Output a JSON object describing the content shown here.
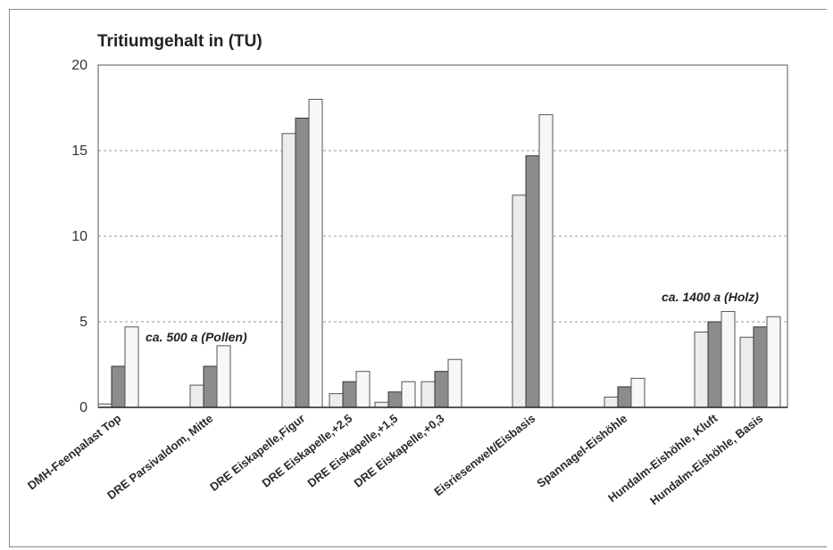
{
  "chart_data": {
    "type": "bar",
    "title": "Tritiumgehalt in (TU)",
    "ylim": [
      0,
      20
    ],
    "yticks": [
      0,
      5,
      10,
      15,
      20
    ],
    "grid": "horizontal dashed",
    "colors": [
      "#ececec",
      "#8c8c8c",
      "#f7f7f7"
    ],
    "categories": [
      "DMH-Feenpalast Top",
      "DRE Parsivaldom, Mitte",
      "DRE Eiskapelle,Figur",
      "DRE Eiskapelle,+2,5",
      "DRE Eiskapelle,+1,5",
      "DRE Eiskapelle,+0,3",
      "Eisriesenwelt/Eisbasis",
      "Spannagel-Eishöhle",
      "Hundalm-Eishöhle, Kluft",
      "Hundalm-Eishöhle, Basis"
    ],
    "series": [
      {
        "values": [
          0.2,
          1.3,
          16.0,
          0.8,
          0.3,
          1.5,
          12.4,
          0.6,
          4.4,
          4.1
        ]
      },
      {
        "values": [
          2.4,
          2.4,
          16.9,
          1.5,
          0.9,
          2.1,
          14.7,
          1.2,
          5.0,
          4.7
        ]
      },
      {
        "values": [
          4.7,
          3.6,
          18.0,
          2.1,
          1.5,
          2.8,
          17.1,
          1.7,
          5.6,
          5.3
        ]
      }
    ],
    "annotations": [
      {
        "text": "ca. 500 a (Pollen)",
        "category": "DRE Parsivaldom, Mitte"
      },
      {
        "text": "ca. 1400 a (Holz)",
        "category": "Hundalm-Eishöhle, Kluft"
      }
    ]
  }
}
